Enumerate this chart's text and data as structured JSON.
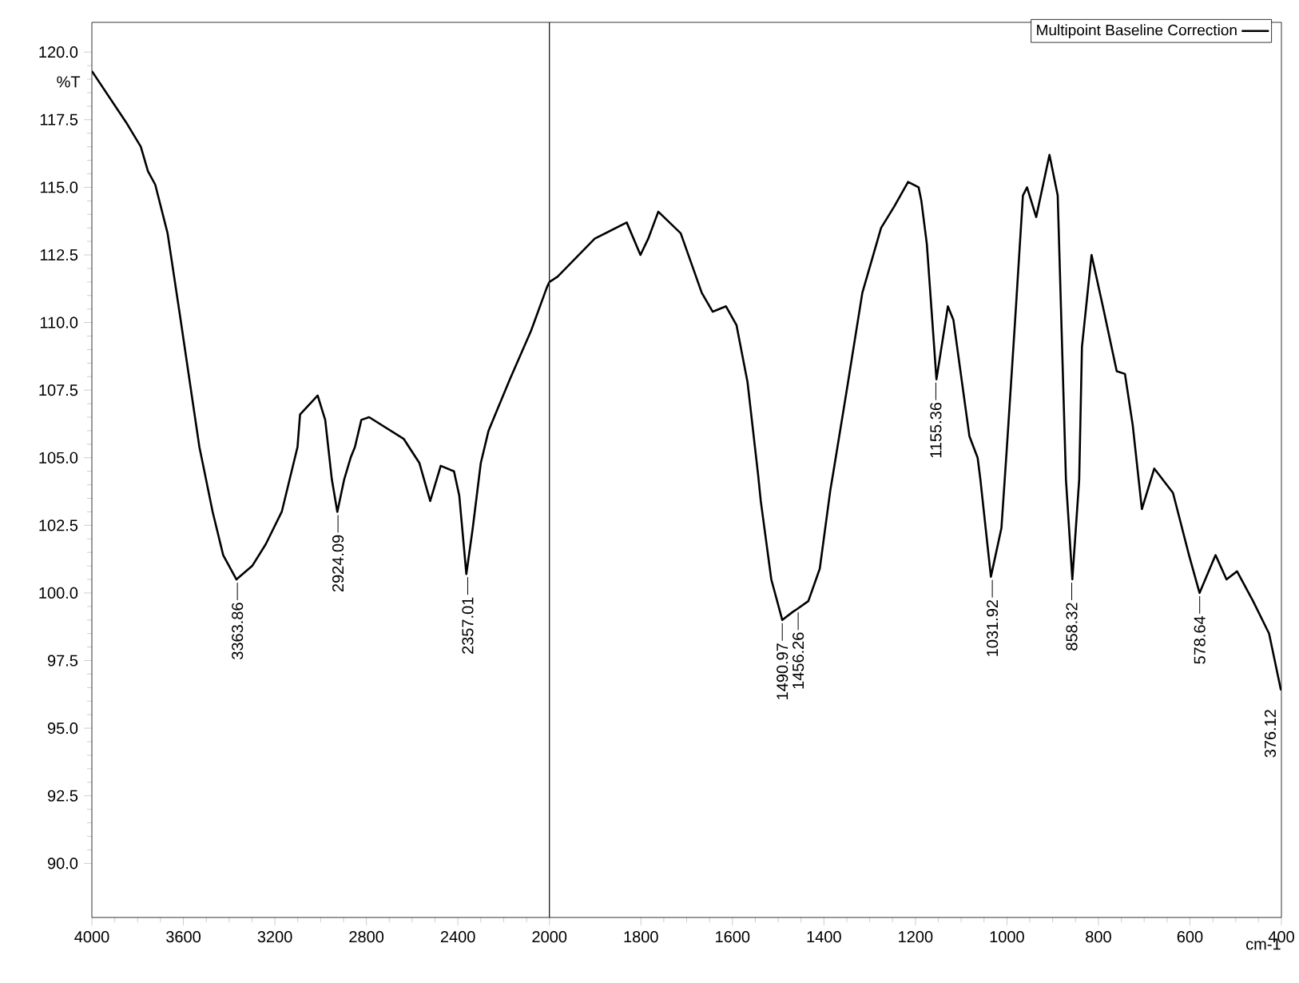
{
  "chart_data": [
    {
      "type": "line",
      "ylabel": "%T",
      "xlim": [
        4000,
        2000
      ],
      "ylim": [
        88,
        121.1
      ],
      "xticks": [
        4000,
        3600,
        3200,
        2800,
        2400,
        2000
      ],
      "yticks": [
        {
          "value": 90,
          "label": "90.0"
        },
        {
          "value": 92.5,
          "label": "92.5"
        },
        {
          "value": 95,
          "label": "95.0"
        },
        {
          "value": 97.5,
          "label": "97.5"
        },
        {
          "value": 100,
          "label": "100.0"
        },
        {
          "value": 102.5,
          "label": "102.5"
        },
        {
          "value": 105,
          "label": "105.0"
        },
        {
          "value": 107.5,
          "label": "107.5"
        },
        {
          "value": 110,
          "label": "110.0"
        },
        {
          "value": 112.5,
          "label": "112.5"
        },
        {
          "value": 115,
          "label": "115.0"
        },
        {
          "value": 117.5,
          "label": "117.5"
        },
        {
          "value": 120,
          "label": "120.0"
        }
      ],
      "x": [
        4000,
        3850,
        3786,
        3755,
        3723,
        3669,
        3612,
        3565,
        3530,
        3472,
        3426,
        3368,
        3299,
        3240,
        3170,
        3101,
        3090,
        3013,
        2980,
        2951,
        2927,
        2897,
        2869,
        2850,
        2822,
        2788,
        2637,
        2568,
        2521,
        2475,
        2417,
        2394,
        2363,
        2335,
        2300,
        2266,
        2173,
        2080,
        2011,
        2000
      ],
      "series": [
        {
          "color": "#000000",
          "values": [
            119.3,
            117.4,
            116.5,
            115.6,
            115.1,
            113.3,
            110.1,
            107.4,
            105.4,
            103.0,
            101.4,
            100.5,
            101.0,
            101.8,
            103.0,
            105.4,
            106.6,
            107.3,
            106.4,
            104.2,
            103.0,
            104.2,
            105.0,
            105.4,
            106.4,
            106.5,
            105.7,
            104.8,
            103.4,
            104.7,
            104.5,
            103.6,
            100.7,
            102.4,
            104.8,
            106.0,
            107.9,
            109.7,
            111.3,
            111.5
          ]
        }
      ],
      "annotations": [
        {
          "text": "3363.86",
          "x": 3363.86,
          "y": 100.5
        },
        {
          "text": "2924.09",
          "x": 2924.09,
          "y": 103.0
        },
        {
          "text": "2357.01",
          "x": 2357.01,
          "y": 100.7
        }
      ]
    },
    {
      "type": "line",
      "xlabel": "cm-1",
      "legend": "top right",
      "tick_labels": "x",
      "xlim": [
        2000,
        400
      ],
      "ylim": [
        88,
        121.1
      ],
      "xticks": [
        1800,
        1600,
        1400,
        1200,
        1000,
        800,
        600,
        400
      ],
      "yticks": [
        {
          "value": 90,
          "label": null
        },
        {
          "value": 120,
          "label": null
        }
      ],
      "x": [
        2000,
        1982,
        1901,
        1831,
        1801,
        1784,
        1762,
        1713,
        1667,
        1643,
        1614,
        1591,
        1567,
        1544,
        1538,
        1515,
        1491,
        1468,
        1459,
        1434,
        1409,
        1386,
        1380,
        1351,
        1316,
        1275,
        1246,
        1216,
        1193,
        1187,
        1175,
        1154,
        1129,
        1117,
        1082,
        1064,
        1058,
        1035,
        1012,
        1000,
        982,
        965,
        956,
        936,
        907,
        889,
        871,
        857,
        842,
        836,
        815,
        789,
        760,
        742,
        725,
        705,
        678,
        637,
        602,
        579,
        544,
        520,
        497,
        462,
        427,
        401
      ],
      "series": [
        {
          "name": "Multipoint Baseline Correction",
          "color": "#000000",
          "values": [
            111.5,
            111.7,
            113.1,
            113.7,
            112.5,
            113.1,
            114.1,
            113.3,
            111.1,
            110.4,
            110.6,
            109.9,
            107.8,
            104.4,
            103.4,
            100.5,
            99.0,
            99.3,
            99.4,
            99.7,
            100.9,
            103.8,
            104.4,
            107.4,
            111.1,
            113.5,
            114.3,
            115.2,
            115.0,
            114.5,
            112.9,
            107.9,
            110.6,
            110.1,
            105.8,
            105.0,
            104.2,
            100.6,
            102.4,
            105.4,
            110.1,
            114.7,
            115.0,
            113.9,
            116.2,
            114.7,
            104.2,
            100.5,
            104.2,
            109.1,
            112.5,
            110.5,
            108.2,
            108.1,
            106.2,
            103.1,
            104.6,
            103.7,
            101.4,
            100.0,
            101.4,
            100.5,
            100.8,
            99.7,
            98.5,
            96.4
          ]
        }
      ],
      "annotations": [
        {
          "text": "1490.97",
          "x": 1490.97,
          "y": 99.0
        },
        {
          "text": "1456.26",
          "x": 1456.26,
          "y": 99.4
        },
        {
          "text": "1155.36",
          "x": 1155.36,
          "y": 107.9
        },
        {
          "text": "1031.92",
          "x": 1031.92,
          "y": 100.6
        },
        {
          "text": "858.32",
          "x": 858.32,
          "y": 100.5
        },
        {
          "text": "578.64",
          "x": 578.64,
          "y": 100.0
        },
        "376.12"
      ]
    }
  ]
}
